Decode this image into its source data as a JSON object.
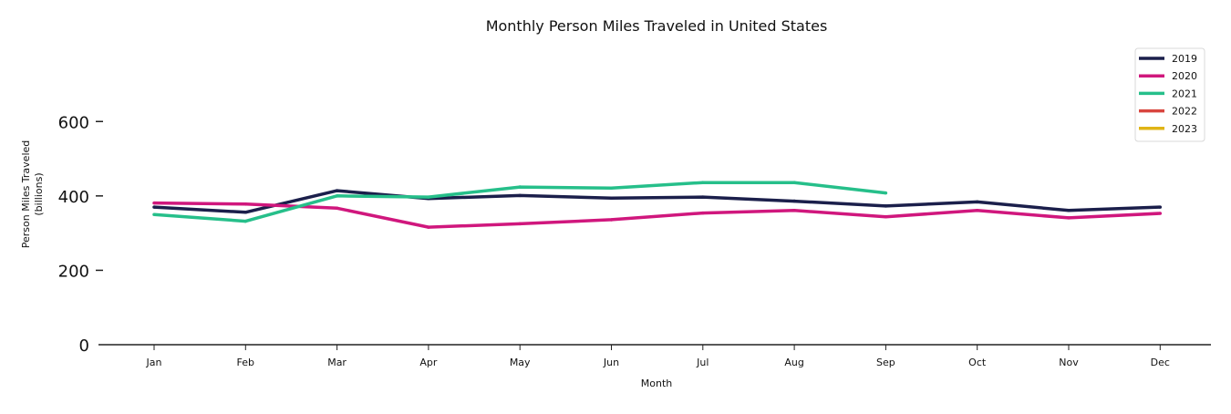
{
  "chart_data": {
    "type": "line",
    "title": "Monthly Person Miles Traveled in United States",
    "xlabel": "Month",
    "ylabel_line1": "Person Miles Traveled",
    "ylabel_line2": "(billions)",
    "categories": [
      "Jan",
      "Feb",
      "Mar",
      "Apr",
      "May",
      "Jun",
      "Jul",
      "Aug",
      "Sep",
      "Oct",
      "Nov",
      "Dec"
    ],
    "ylim": [
      0,
      760
    ],
    "yticks": [
      0,
      200,
      400,
      600
    ],
    "legend_position": "top-right",
    "grid": false,
    "series": [
      {
        "name": "2019",
        "color": "#1b1f4b",
        "values": [
          370,
          356,
          414,
          393,
          401,
          394,
          397,
          386,
          373,
          384,
          361,
          370
        ]
      },
      {
        "name": "2020",
        "color": "#d0177d",
        "values": [
          381,
          378,
          367,
          316,
          325,
          336,
          354,
          361,
          344,
          361,
          341,
          353
        ]
      },
      {
        "name": "2021",
        "color": "#26bf8a",
        "values": [
          350,
          332,
          400,
          397,
          424,
          421,
          436,
          436,
          408,
          null,
          null,
          null
        ]
      },
      {
        "name": "2022",
        "color": "#d9463f",
        "values": [
          null,
          null,
          null,
          null,
          null,
          null,
          null,
          null,
          null,
          null,
          null,
          null
        ]
      },
      {
        "name": "2023",
        "color": "#e0b416",
        "values": [
          null,
          null,
          null,
          null,
          null,
          null,
          null,
          null,
          null,
          null,
          null,
          null
        ]
      }
    ]
  }
}
